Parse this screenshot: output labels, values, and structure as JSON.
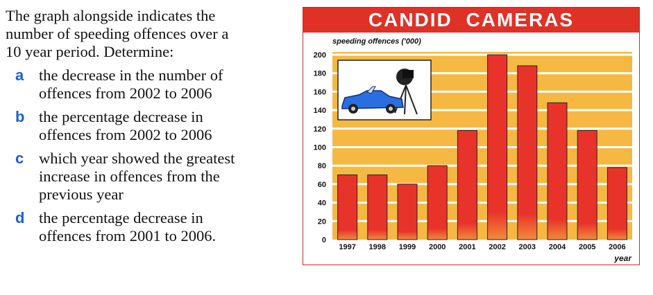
{
  "question": {
    "intro": [
      "The graph alongside indicates the",
      "number of speeding offences over a",
      "10 year period. Determine:"
    ],
    "parts": [
      {
        "letter": "a",
        "lines": [
          "the decrease in the number of",
          "offences from 2002 to 2006"
        ]
      },
      {
        "letter": "b",
        "lines": [
          "the percentage decrease in",
          "offences from 2002 to 2006"
        ]
      },
      {
        "letter": "c",
        "lines": [
          "which year showed the greatest",
          "increase in offences from the",
          "previous year"
        ]
      },
      {
        "letter": "d",
        "lines": [
          "the percentage decrease in",
          "offences from 2001 to 2006."
        ]
      }
    ]
  },
  "colors": {
    "accent": "#1a5fd6",
    "banner": "#e03127",
    "bar": "#e8332a",
    "plot_bg": "#f5b843"
  },
  "chart_data": {
    "type": "bar",
    "title": "CANDID CAMERAS",
    "ylabel": "speeding offences ('000)",
    "xlabel": "year",
    "categories": [
      "1997",
      "1998",
      "1999",
      "2000",
      "2001",
      "2002",
      "2003",
      "2004",
      "2005",
      "2006"
    ],
    "values": [
      70,
      70,
      60,
      80,
      118,
      200,
      188,
      148,
      118,
      78
    ],
    "ylim": [
      0,
      200
    ],
    "yticks": [
      0,
      20,
      40,
      60,
      80,
      100,
      120,
      140,
      160,
      180,
      200
    ],
    "grid": true,
    "legend": "none",
    "inset_image": "convertible car and speed camera"
  }
}
